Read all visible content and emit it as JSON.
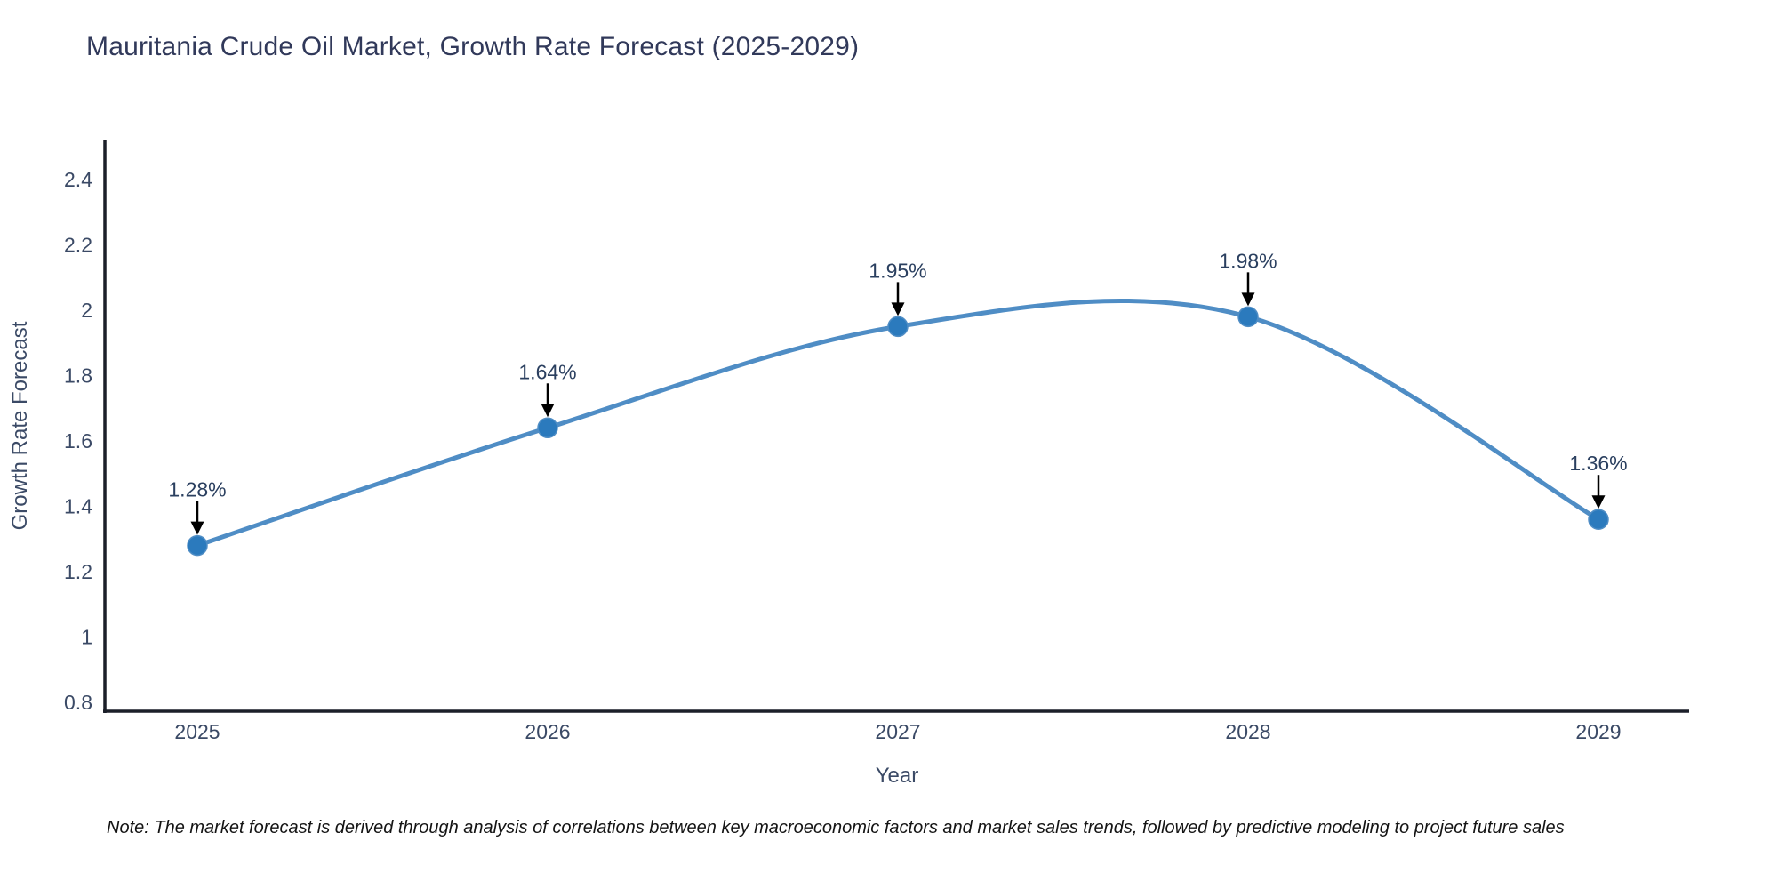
{
  "chart_data": {
    "type": "line",
    "title": "Mauritania Crude Oil Market, Growth Rate Forecast (2025-2029)",
    "xlabel": "Year",
    "ylabel": "Growth Rate Forecast",
    "categories": [
      "2025",
      "2026",
      "2027",
      "2028",
      "2029"
    ],
    "series": [
      {
        "name": "Growth Rate Forecast",
        "values": [
          1.28,
          1.64,
          1.95,
          1.98,
          1.36
        ],
        "point_labels": [
          "1.28%",
          "1.64%",
          "1.95%",
          "1.98%",
          "1.36%"
        ]
      }
    ],
    "y_ticks": [
      2.4,
      2.2,
      2,
      1.8,
      1.6,
      1.4,
      1.2,
      1,
      0.8
    ],
    "y_tick_labels": [
      "2.4",
      "2.2",
      "2",
      "1.8",
      "1.6",
      "1.4",
      "1.2",
      "1",
      "0.8"
    ],
    "x_tick_labels": [
      "2025",
      "2026",
      "2027",
      "2028",
      "2029"
    ],
    "ylim": [
      0.77,
      2.52
    ],
    "grid": false,
    "legend": false,
    "line_shape": "spline",
    "annotation_style": "value label with downward black arrow to marker",
    "colors": {
      "line": "#4f8dc5",
      "marker": "#2b7abd",
      "arrow": "#000000",
      "axis": "#1b1f29",
      "tick_text": "#3b4a66",
      "title_text": "#31395a",
      "annotation_text": "#2a3f5f"
    }
  },
  "note": {
    "text": "Note: The market forecast is derived through analysis of correlations between key macroeconomic factors and market sales trends, followed by predictive modeling to project future sales"
  }
}
